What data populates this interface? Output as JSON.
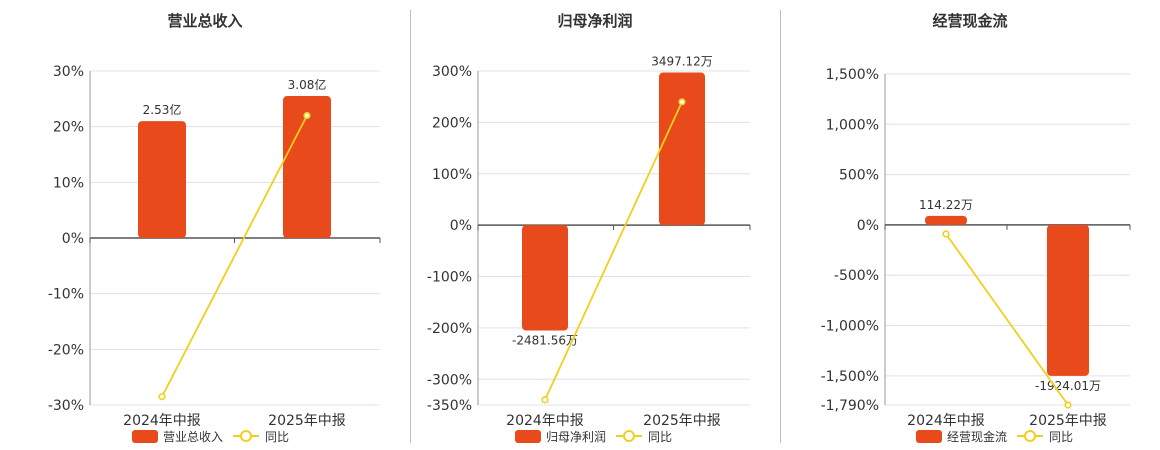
{
  "colors": {
    "bar": "#e84a1c",
    "line": "#f2cf1d",
    "grid": "#e0e0ee",
    "axis": "#555555",
    "text": "#333333"
  },
  "legend": {
    "line_label": "同比"
  },
  "chart_data": [
    {
      "type": "bar",
      "title": "营业总收入",
      "categories": [
        "2024年中报",
        "2025年中报"
      ],
      "series": [
        {
          "name": "营业总收入",
          "type": "bar",
          "values": [
            21,
            25.5
          ],
          "labels": [
            "2.53亿",
            "3.08亿"
          ]
        },
        {
          "name": "同比",
          "type": "line",
          "values": [
            -28.5,
            22
          ]
        }
      ],
      "yticks": [
        "30%",
        "20%",
        "10%",
        "0%",
        "-10%",
        "-20%",
        "-30%"
      ],
      "ytick_values": [
        30,
        20,
        10,
        0,
        -10,
        -20,
        -30
      ],
      "ylim": [
        -30,
        30
      ],
      "grid": true,
      "legend_position": "bottom"
    },
    {
      "type": "bar",
      "title": "归母净利润",
      "categories": [
        "2024年中报",
        "2025年中报"
      ],
      "series": [
        {
          "name": "归母净利润",
          "type": "bar",
          "values": [
            -205,
            297
          ],
          "labels": [
            "-2481.56万",
            "3497.12万"
          ]
        },
        {
          "name": "同比",
          "type": "line",
          "values": [
            -340,
            240
          ]
        }
      ],
      "yticks": [
        "300%",
        "200%",
        "100%",
        "0%",
        "-100%",
        "-200%",
        "-300%",
        "-350%"
      ],
      "ytick_values": [
        300,
        200,
        100,
        0,
        -100,
        -200,
        -300,
        -350
      ],
      "ylim": [
        -350,
        300
      ],
      "grid": true,
      "legend_position": "bottom"
    },
    {
      "type": "bar",
      "title": "经营现金流",
      "categories": [
        "2024年中报",
        "2025年中报"
      ],
      "series": [
        {
          "name": "经营现金流",
          "type": "bar",
          "values": [
            90,
            -1500
          ],
          "labels": [
            "114.22万",
            "-1924.01万"
          ]
        },
        {
          "name": "同比",
          "type": "line",
          "values": [
            -90,
            -1790
          ]
        }
      ],
      "yticks": [
        "1,500%",
        "1,000%",
        "500%",
        "0%",
        "-500%",
        "-1,000%",
        "-1,500%",
        "-1,790%"
      ],
      "ytick_values": [
        1500,
        1000,
        500,
        0,
        -500,
        -1000,
        -1500,
        -1790
      ],
      "ylim": [
        -1790,
        1500
      ],
      "grid": true,
      "legend_position": "bottom"
    }
  ]
}
